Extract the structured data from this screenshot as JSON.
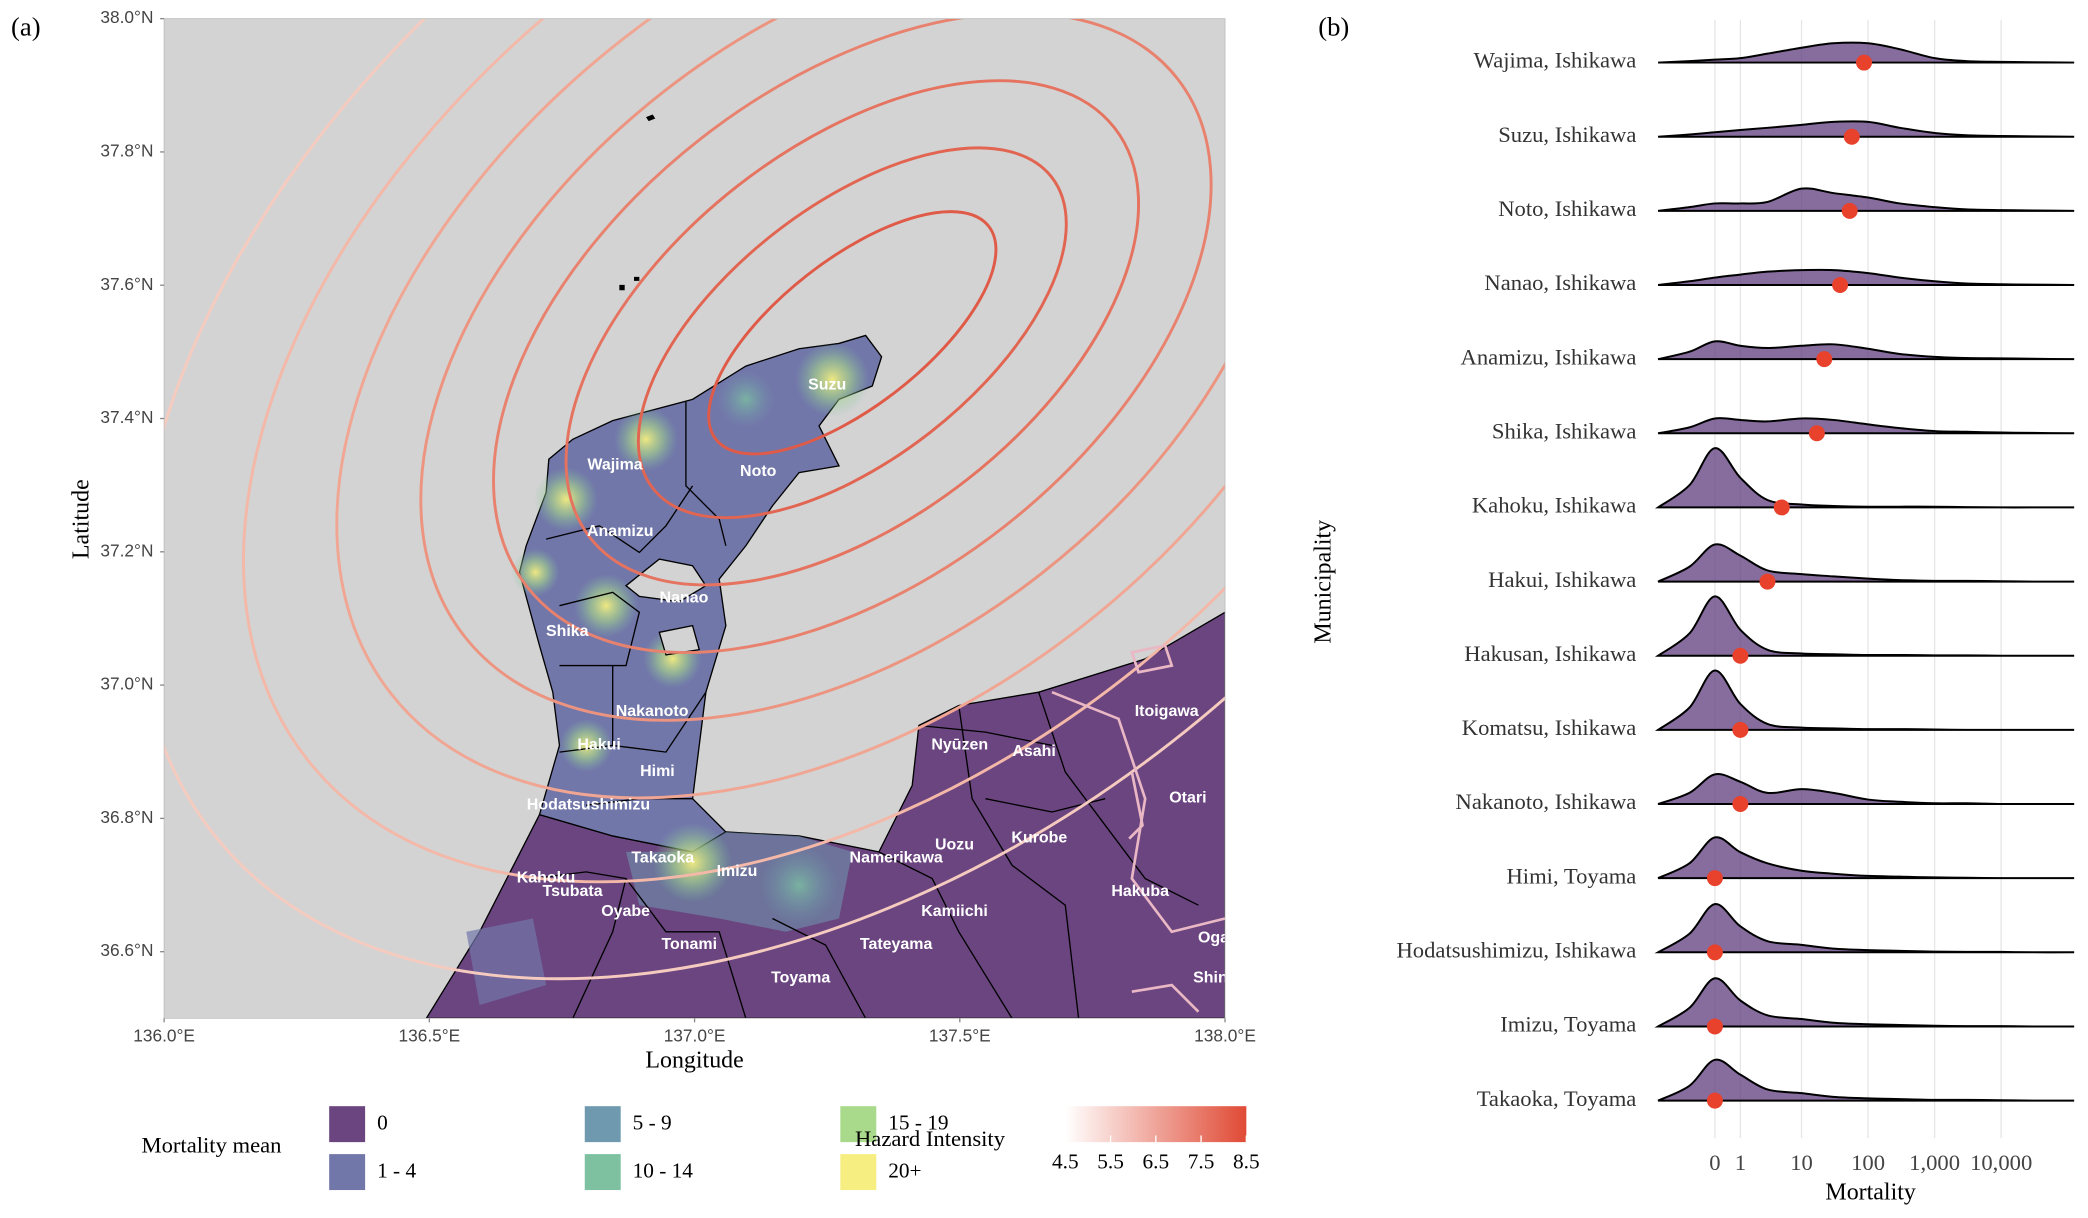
{
  "chart_data": [
    {
      "type": "map",
      "panel_label": "(a)",
      "x_label": "Longitude",
      "y_label": "Latitude",
      "xlim": [
        136,
        138
      ],
      "ylim": [
        36.5,
        38
      ],
      "xticks": [
        {
          "value": 136,
          "label": "136.0°E"
        },
        {
          "value": 136.5,
          "label": "136.5°E"
        },
        {
          "value": 137,
          "label": "137.0°E"
        },
        {
          "value": 137.5,
          "label": "137.5°E"
        },
        {
          "value": 138,
          "label": "138.0°E"
        }
      ],
      "yticks": [
        {
          "value": 36.6,
          "label": "36.6°N"
        },
        {
          "value": 36.8,
          "label": "36.8°N"
        },
        {
          "value": 37,
          "label": "37.0°N"
        },
        {
          "value": 37.2,
          "label": "37.2°N"
        },
        {
          "value": 37.4,
          "label": "37.4°N"
        },
        {
          "value": 37.6,
          "label": "37.6°N"
        },
        {
          "value": 37.8,
          "label": "37.8°N"
        },
        {
          "value": 38,
          "label": "38.0°N"
        }
      ],
      "places": [
        {
          "name": "Suzu",
          "lon": 137.25,
          "lat": 37.45
        },
        {
          "name": "Wajima",
          "lon": 136.85,
          "lat": 37.33
        },
        {
          "name": "Noto",
          "lon": 137.12,
          "lat": 37.32
        },
        {
          "name": "Anamizu",
          "lon": 136.86,
          "lat": 37.23
        },
        {
          "name": "Nanao",
          "lon": 136.98,
          "lat": 37.13
        },
        {
          "name": "Shika",
          "lon": 136.76,
          "lat": 37.08
        },
        {
          "name": "Nakanoto",
          "lon": 136.92,
          "lat": 36.96
        },
        {
          "name": "Hakui",
          "lon": 136.82,
          "lat": 36.91
        },
        {
          "name": "Himi",
          "lon": 136.93,
          "lat": 36.87
        },
        {
          "name": "Hodatsushimizu",
          "lon": 136.8,
          "lat": 36.82
        },
        {
          "name": "Takaoka",
          "lon": 136.94,
          "lat": 36.74
        },
        {
          "name": "Imizu",
          "lon": 137.08,
          "lat": 36.72
        },
        {
          "name": "Kahoku",
          "lon": 136.72,
          "lat": 36.71
        },
        {
          "name": "Tsubata",
          "lon": 136.77,
          "lat": 36.69
        },
        {
          "name": "Oyabe",
          "lon": 136.87,
          "lat": 36.66
        },
        {
          "name": "Tonami",
          "lon": 136.99,
          "lat": 36.61
        },
        {
          "name": "Toyama",
          "lon": 137.2,
          "lat": 36.56
        },
        {
          "name": "Namerikawa",
          "lon": 137.38,
          "lat": 36.74
        },
        {
          "name": "Uozu",
          "lon": 137.49,
          "lat": 36.76
        },
        {
          "name": "Kurobe",
          "lon": 137.65,
          "lat": 36.77
        },
        {
          "name": "Kamiichi",
          "lon": 137.49,
          "lat": 36.66
        },
        {
          "name": "Tateyama",
          "lon": 137.38,
          "lat": 36.61
        },
        {
          "name": "Nyūzen",
          "lon": 137.5,
          "lat": 36.91
        },
        {
          "name": "Asahi",
          "lon": 137.64,
          "lat": 36.9
        },
        {
          "name": "Itoigawa",
          "lon": 137.89,
          "lat": 36.96
        },
        {
          "name": "Otari",
          "lon": 137.93,
          "lat": 36.83
        },
        {
          "name": "Hakuba",
          "lon": 137.84,
          "lat": 36.69
        },
        {
          "name": "Ogaw",
          "lon": 137.99,
          "lat": 36.62
        },
        {
          "name": "Shinsh",
          "lon": 137.99,
          "lat": 36.56
        }
      ],
      "legend": {
        "title": "Mortality mean",
        "classes": [
          {
            "label": "0",
            "color": "#6b4580"
          },
          {
            "label": "1 - 4",
            "color": "#7277a9"
          },
          {
            "label": "5 - 9",
            "color": "#6f99ae"
          },
          {
            "label": "10 - 14",
            "color": "#7dc1a1"
          },
          {
            "label": "15 - 19",
            "color": "#a9d98a"
          },
          {
            "label": "20+",
            "color": "#f6ee80"
          }
        ]
      },
      "hazard_legend": {
        "title": "Hazard Intensity",
        "colors": [
          "#ffffff",
          "#e04a35"
        ],
        "lim": [
          4.5,
          8.5
        ],
        "ticks": [
          4.5,
          5.5,
          6.5,
          7.5,
          8.5
        ]
      }
    },
    {
      "type": "ridgeline",
      "panel_label": "(b)",
      "x_label": "Mortality",
      "y_label": "Municipality",
      "scale": "pseudo_log",
      "categories": [
        "Wajima, Ishikawa",
        "Suzu, Ishikawa",
        "Noto, Ishikawa",
        "Nanao, Ishikawa",
        "Anamizu, Ishikawa",
        "Shika, Ishikawa",
        "Kahoku, Ishikawa",
        "Hakui, Ishikawa",
        "Hakusan, Ishikawa",
        "Komatsu, Ishikawa",
        "Nakanoto, Ishikawa",
        "Himi, Toyama",
        "Hodatsushimizu, Ishikawa",
        "Imizu, Toyama",
        "Takaoka, Toyama"
      ],
      "xlim": [
        -3.5,
        125000
      ],
      "xticks": [
        0,
        1,
        10,
        100,
        {
          "value": 1000,
          "label": "1,000"
        },
        {
          "value": 10000,
          "label": "10,000"
        }
      ],
      "grid": true,
      "density_x": [
        -3.5,
        -1,
        0,
        1,
        3,
        10,
        30,
        100,
        300,
        1000,
        3000,
        10000,
        30000,
        125000
      ],
      "density": [
        [
          0,
          0.02,
          0.04,
          0.06,
          0.12,
          0.2,
          0.26,
          0.26,
          0.18,
          0.06,
          0.02,
          0.01,
          0.005,
          0
        ],
        [
          0,
          0.03,
          0.06,
          0.09,
          0.12,
          0.16,
          0.2,
          0.2,
          0.12,
          0.05,
          0.02,
          0.01,
          0.005,
          0
        ],
        [
          0,
          0.05,
          0.1,
          0.1,
          0.12,
          0.3,
          0.24,
          0.18,
          0.1,
          0.05,
          0.02,
          0.01,
          0.005,
          0
        ],
        [
          0,
          0.05,
          0.1,
          0.14,
          0.18,
          0.2,
          0.2,
          0.16,
          0.1,
          0.05,
          0.02,
          0.01,
          0.005,
          0
        ],
        [
          0,
          0.1,
          0.24,
          0.18,
          0.15,
          0.18,
          0.2,
          0.14,
          0.07,
          0.03,
          0.015,
          0.01,
          0.005,
          0
        ],
        [
          0,
          0.08,
          0.2,
          0.18,
          0.16,
          0.2,
          0.18,
          0.12,
          0.07,
          0.03,
          0.02,
          0.01,
          0.005,
          0
        ],
        [
          0,
          0.3,
          0.8,
          0.4,
          0.1,
          0.04,
          0.02,
          0.01,
          0.01,
          0.01,
          0.005,
          0,
          0,
          0
        ],
        [
          0,
          0.2,
          0.5,
          0.35,
          0.15,
          0.1,
          0.07,
          0.04,
          0.02,
          0.01,
          0.01,
          0.005,
          0,
          0
        ],
        [
          0,
          0.3,
          0.8,
          0.35,
          0.08,
          0.03,
          0.02,
          0.01,
          0.01,
          0.005,
          0.005,
          0,
          0,
          0
        ],
        [
          0,
          0.3,
          0.8,
          0.35,
          0.08,
          0.03,
          0.02,
          0.01,
          0.01,
          0.005,
          0,
          0,
          0,
          0
        ],
        [
          0,
          0.15,
          0.4,
          0.3,
          0.15,
          0.2,
          0.15,
          0.06,
          0.03,
          0.01,
          0.01,
          0,
          0,
          0
        ],
        [
          0,
          0.2,
          0.55,
          0.35,
          0.2,
          0.1,
          0.06,
          0.03,
          0.02,
          0.01,
          0.005,
          0,
          0,
          0
        ],
        [
          0,
          0.25,
          0.65,
          0.35,
          0.15,
          0.1,
          0.05,
          0.03,
          0.02,
          0.01,
          0.005,
          0.005,
          0,
          0
        ],
        [
          0,
          0.25,
          0.65,
          0.35,
          0.15,
          0.1,
          0.05,
          0.03,
          0.02,
          0.01,
          0.005,
          0.005,
          0,
          0
        ],
        [
          0,
          0.2,
          0.55,
          0.35,
          0.15,
          0.1,
          0.05,
          0.03,
          0.02,
          0.01,
          0.01,
          0.005,
          0,
          0
        ]
      ],
      "means": [
        87,
        57,
        53,
        38,
        22,
        17,
        5,
        3,
        1,
        1,
        1,
        0,
        0,
        0,
        0
      ],
      "fill": "#5e3c7e",
      "mean_color": "#e8412c"
    }
  ]
}
